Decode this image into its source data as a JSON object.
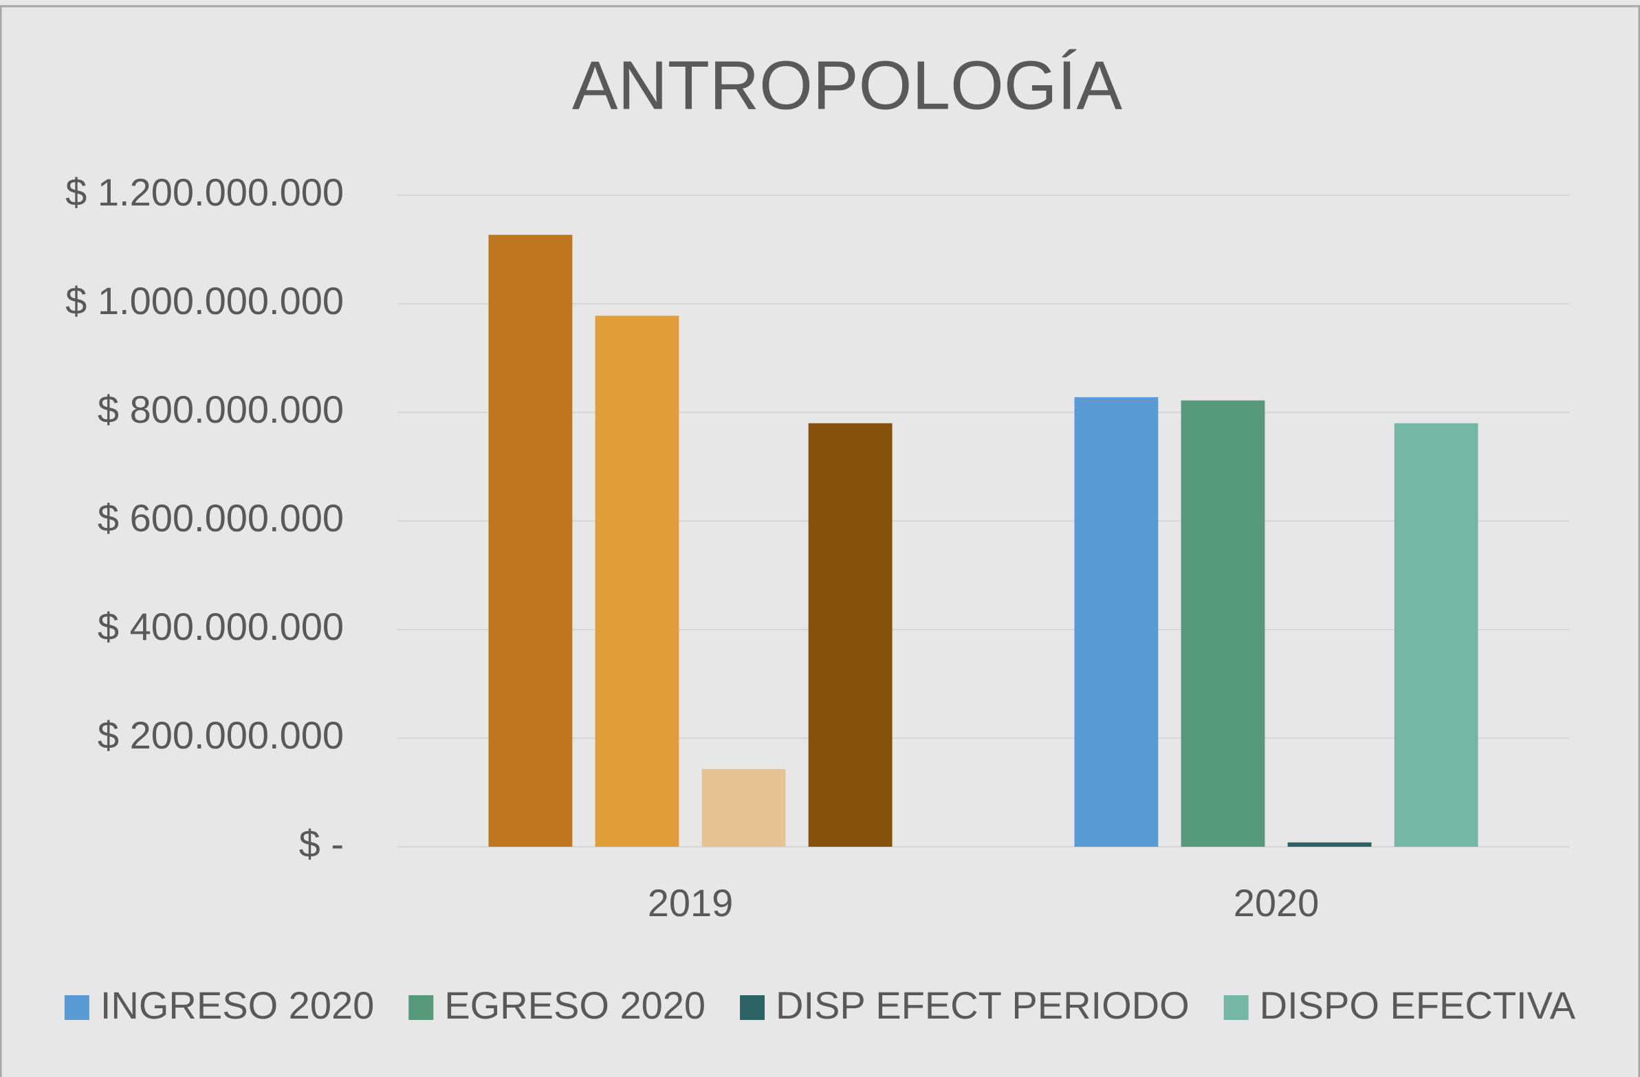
{
  "chart_data": {
    "type": "bar",
    "title": "ANTROPOLOGÍA",
    "categories": [
      "2019",
      "2020"
    ],
    "series": [
      {
        "name": "INGRESO 2020",
        "color": "#5b9bd5",
        "colors": [
          "#bd7520",
          "#5b9bd5"
        ],
        "values": [
          1127000000,
          828000000
        ]
      },
      {
        "name": "EGRESO 2020",
        "color": "#56997b",
        "colors": [
          "#e29d3b",
          "#56997b"
        ],
        "values": [
          978000000,
          822000000
        ]
      },
      {
        "name": "DISP EFECT PERIODO",
        "color": "#2e6366",
        "colors": [
          "#e6c294",
          "#2e6366"
        ],
        "values": [
          143000000,
          8000000
        ]
      },
      {
        "name": "DISPO EFECTIVA",
        "color": "#76b6a4",
        "colors": [
          "#86500d",
          "#76b6a4"
        ],
        "values": [
          780000000,
          780000000
        ]
      }
    ],
    "ylim": [
      0,
      1200000000
    ],
    "yticks": [
      {
        "value": 0,
        "label": "$ -"
      },
      {
        "value": 200000000,
        "label": "$ 200.000.000"
      },
      {
        "value": 400000000,
        "label": "$ 400.000.000"
      },
      {
        "value": 600000000,
        "label": "$ 600.000.000"
      },
      {
        "value": 800000000,
        "label": "$ 800.000.000"
      },
      {
        "value": 1000000000,
        "label": "$ 1.000.000.000"
      },
      {
        "value": 1200000000,
        "label": "$ 1.200.000.000"
      }
    ],
    "grid": true,
    "legend": "bottom"
  }
}
